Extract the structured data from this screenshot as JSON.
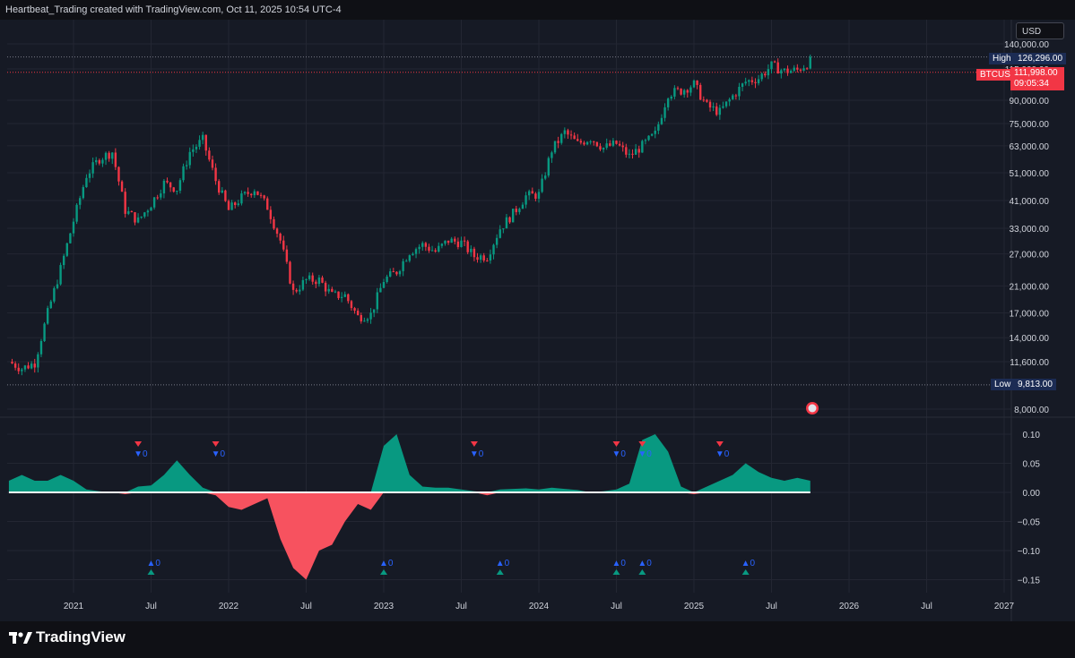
{
  "header": {
    "text": "Heartbeat_Trading created with TradingView.com, Oct 11, 2025 10:54 UTC-4"
  },
  "currency": "USD",
  "footer": {
    "brand": "TradingView"
  },
  "markers": {
    "high": {
      "label": "High",
      "value": "126,296.00"
    },
    "low": {
      "label": "Low",
      "value": "9,813.00"
    },
    "symbol": "BTCUSD",
    "last_price": "111,998.00",
    "countdown": "09:05:34"
  },
  "signals": {
    "sell_label": "▼0",
    "buy_label": "▲0"
  },
  "colors": {
    "up": "#089981",
    "down": "#f23645",
    "osc_pos": "#089981",
    "osc_neg": "#f7525f",
    "axis_text": "#d1d4dc",
    "grid": "#232632"
  },
  "chart_data": [
    {
      "type": "line",
      "title": "BTCUSD",
      "scale": "log",
      "x_ticks": [
        "2021",
        "Jul",
        "2022",
        "Jul",
        "2023",
        "Jul",
        "2024",
        "Jul",
        "2025",
        "Jul",
        "2026",
        "Jul",
        "2027"
      ],
      "y_ticks": [
        "140,000.00",
        "115,000.00",
        "90,000.00",
        "75,000.00",
        "63,000.00",
        "51,000.00",
        "41,000.00",
        "33,000.00",
        "27,000.00",
        "21,000.00",
        "17,000.00",
        "14,000.00",
        "11,600.00",
        "8,000.00"
      ],
      "ylim": [
        8000,
        140000
      ],
      "series": [
        {
          "x": [
            "2020-08",
            "2020-09",
            "2020-10",
            "2020-11",
            "2020-12",
            "2021-01",
            "2021-02",
            "2021-03",
            "2021-04",
            "2021-05",
            "2021-06",
            "2021-07",
            "2021-08",
            "2021-09",
            "2021-10",
            "2021-11",
            "2021-12",
            "2022-01",
            "2022-02",
            "2022-03",
            "2022-04",
            "2022-05",
            "2022-06",
            "2022-07",
            "2022-08",
            "2022-09",
            "2022-10",
            "2022-11",
            "2022-12",
            "2023-01",
            "2023-02",
            "2023-03",
            "2023-04",
            "2023-05",
            "2023-06",
            "2023-07",
            "2023-08",
            "2023-09",
            "2023-10",
            "2023-11",
            "2023-12",
            "2024-01",
            "2024-02",
            "2024-03",
            "2024-04",
            "2024-05",
            "2024-06",
            "2024-07",
            "2024-08",
            "2024-09",
            "2024-10",
            "2024-11",
            "2024-12",
            "2025-01",
            "2025-02",
            "2025-03",
            "2025-04",
            "2025-05",
            "2025-06",
            "2025-07",
            "2025-08",
            "2025-09",
            "2025-10"
          ],
          "values": [
            11600,
            11000,
            11500,
            17000,
            24000,
            35000,
            50000,
            57000,
            60000,
            38000,
            35000,
            40000,
            47000,
            45000,
            60000,
            66000,
            48000,
            38000,
            42000,
            45000,
            39000,
            30000,
            20000,
            22000,
            22000,
            19500,
            19500,
            16500,
            16800,
            22000,
            23500,
            27500,
            29000,
            27500,
            30000,
            29500,
            26500,
            26500,
            33000,
            37000,
            42500,
            43000,
            61000,
            70000,
            64000,
            67000,
            62000,
            64000,
            58000,
            63000,
            69000,
            95000,
            97000,
            102000,
            86000,
            82000,
            93000,
            104000,
            107000,
            118000,
            113000,
            114000,
            122000
          ]
        }
      ],
      "high": 126296,
      "low": 9813,
      "grid": true
    },
    {
      "type": "area",
      "y_ticks": [
        "0.10",
        "0.05",
        "0.00",
        "−0.05",
        "−0.10",
        "−0.15"
      ],
      "ylim": [
        -0.16,
        0.11
      ],
      "series": [
        {
          "x": [
            "2020-08",
            "2020-09",
            "2020-10",
            "2020-11",
            "2020-12",
            "2021-01",
            "2021-02",
            "2021-03",
            "2021-04",
            "2021-05",
            "2021-06",
            "2021-07",
            "2021-08",
            "2021-09",
            "2021-10",
            "2021-11",
            "2021-12",
            "2022-01",
            "2022-02",
            "2022-03",
            "2022-04",
            "2022-05",
            "2022-06",
            "2022-07",
            "2022-08",
            "2022-09",
            "2022-10",
            "2022-11",
            "2022-12",
            "2023-01",
            "2023-02",
            "2023-03",
            "2023-04",
            "2023-05",
            "2023-06",
            "2023-07",
            "2023-08",
            "2023-09",
            "2023-10",
            "2023-11",
            "2023-12",
            "2024-01",
            "2024-02",
            "2024-03",
            "2024-04",
            "2024-05",
            "2024-06",
            "2024-07",
            "2024-08",
            "2024-09",
            "2024-10",
            "2024-11",
            "2024-12",
            "2025-01",
            "2025-02",
            "2025-03",
            "2025-04",
            "2025-05",
            "2025-06",
            "2025-07",
            "2025-08",
            "2025-09",
            "2025-10"
          ],
          "values": [
            0.02,
            0.03,
            0.02,
            0.02,
            0.03,
            0.02,
            0.005,
            0.002,
            0.0,
            -0.003,
            0.01,
            0.012,
            0.03,
            0.055,
            0.03,
            0.008,
            -0.005,
            -0.025,
            -0.03,
            -0.02,
            -0.01,
            -0.08,
            -0.13,
            -0.15,
            -0.1,
            -0.09,
            -0.05,
            -0.02,
            -0.03,
            0.08,
            0.1,
            0.03,
            0.01,
            0.008,
            0.008,
            0.005,
            0.002,
            -0.005,
            0.005,
            0.006,
            0.007,
            0.005,
            0.008,
            0.006,
            0.004,
            0.0,
            0.002,
            0.005,
            0.015,
            0.09,
            0.1,
            0.07,
            0.01,
            -0.003,
            0.01,
            0.02,
            0.03,
            0.05,
            0.035,
            0.025,
            0.02,
            0.025,
            0.02
          ]
        }
      ],
      "grid": true
    }
  ]
}
